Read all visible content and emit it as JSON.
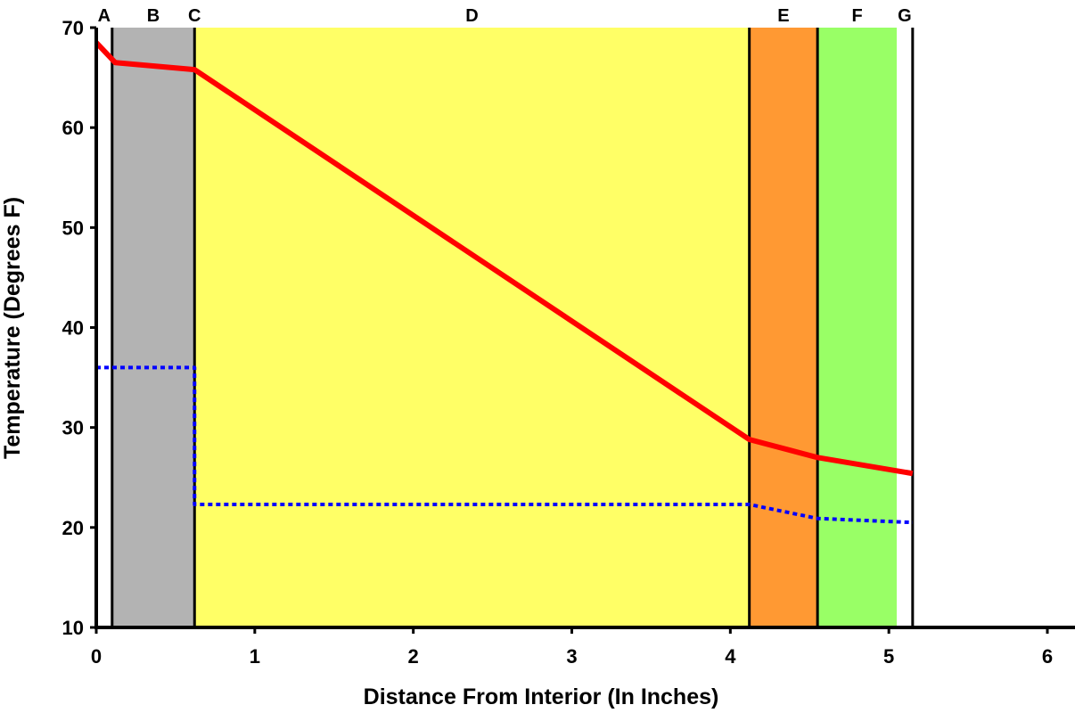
{
  "chart_data": {
    "type": "line",
    "title": "",
    "xlabel": "Distance From Interior (In Inches)",
    "ylabel": "Temperature (Degrees F)",
    "xlim": [
      0,
      6
    ],
    "ylim": [
      10,
      70
    ],
    "xticks": [
      "0",
      "1",
      "2",
      "3",
      "4",
      "5",
      "6"
    ],
    "yticks": [
      "10",
      "20",
      "30",
      "40",
      "50",
      "60",
      "70"
    ],
    "grid": false,
    "layers": [
      {
        "label": "A",
        "x0": 0.0,
        "x1": 0.1,
        "color": "#ffffff"
      },
      {
        "label": "B",
        "x0": 0.1,
        "x1": 0.62,
        "color": "#b3b3b3"
      },
      {
        "label": "C",
        "x0": 0.62,
        "x1": 0.62,
        "color": "#ffffff"
      },
      {
        "label": "D",
        "x0": 0.62,
        "x1": 4.12,
        "color": "#ffff66"
      },
      {
        "label": "E",
        "x0": 4.12,
        "x1": 4.55,
        "color": "#ff9933"
      },
      {
        "label": "F",
        "x0": 4.55,
        "x1": 5.05,
        "color": "#99ff66"
      },
      {
        "label": "G",
        "x0": 5.05,
        "x1": 5.15,
        "color": "#ffffff"
      }
    ],
    "boundaries": [
      0.1,
      0.62,
      4.12,
      4.55,
      5.15
    ],
    "series": [
      {
        "style": "solid",
        "color": "#ff0000",
        "x": [
          0.0,
          0.12,
          0.62,
          4.12,
          4.55,
          5.15
        ],
        "y": [
          68.5,
          66.5,
          65.8,
          28.8,
          27.0,
          25.4
        ]
      },
      {
        "style": "dotted",
        "color": "#0000ff",
        "x": [
          0.0,
          0.62,
          0.62,
          4.12,
          4.55,
          5.15
        ],
        "y": [
          36.0,
          36.0,
          22.3,
          22.3,
          20.9,
          20.5
        ]
      }
    ]
  }
}
